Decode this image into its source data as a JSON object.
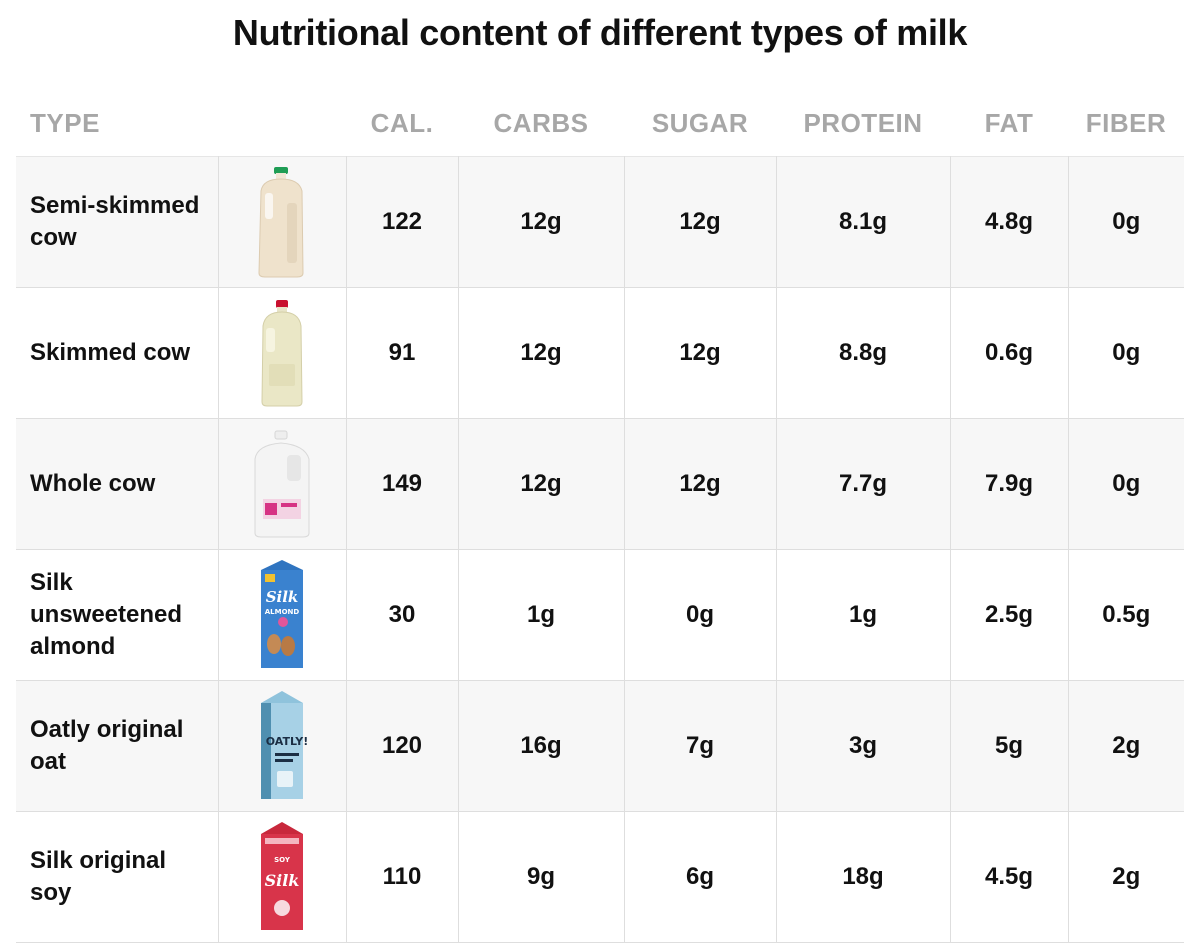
{
  "title": "Nutritional content of different types of milk",
  "headers": {
    "type": "TYPE",
    "cal": "CAL.",
    "carbs": "CARBS",
    "sugar": "SUGAR",
    "protein": "PROTEIN",
    "fat": "FAT",
    "fiber": "FIBER"
  },
  "rows": [
    {
      "type": "Semi-skimmed cow",
      "icon": "semi-skimmed-milk-jug-icon",
      "cal": "122",
      "carbs": "12g",
      "sugar": "12g",
      "protein": "8.1g",
      "fat": "4.8g",
      "fiber": "0g"
    },
    {
      "type": "Skimmed cow",
      "icon": "skimmed-milk-jug-icon",
      "cal": "91",
      "carbs": "12g",
      "sugar": "12g",
      "protein": "8.8g",
      "fat": "0.6g",
      "fiber": "0g"
    },
    {
      "type": "Whole cow",
      "icon": "whole-milk-gallon-icon",
      "cal": "149",
      "carbs": "12g",
      "sugar": "12g",
      "protein": "7.7g",
      "fat": "7.9g",
      "fiber": "0g"
    },
    {
      "type": "Silk unsweetened almond",
      "icon": "silk-almond-carton-icon",
      "cal": "30",
      "carbs": "1g",
      "sugar": "0g",
      "protein": "1g",
      "fat": "2.5g",
      "fiber": "0.5g"
    },
    {
      "type": "Oatly original oat",
      "icon": "oatly-carton-icon",
      "cal": "120",
      "carbs": "16g",
      "sugar": "7g",
      "protein": "3g",
      "fat": "5g",
      "fiber": "2g"
    },
    {
      "type": "Silk original soy",
      "icon": "silk-soy-carton-icon",
      "cal": "110",
      "carbs": "9g",
      "sugar": "6g",
      "protein": "18g",
      "fat": "4.5g",
      "fiber": "2g"
    }
  ],
  "chart_data": {
    "type": "table",
    "title": "Nutritional content of different types of milk",
    "columns": [
      "TYPE",
      "CAL.",
      "CARBS",
      "SUGAR",
      "PROTEIN",
      "FAT",
      "FIBER"
    ],
    "rows": [
      [
        "Semi-skimmed cow",
        "122",
        "12g",
        "12g",
        "8.1g",
        "4.8g",
        "0g"
      ],
      [
        "Skimmed cow",
        "91",
        "12g",
        "12g",
        "8.8g",
        "0.6g",
        "0g"
      ],
      [
        "Whole cow",
        "149",
        "12g",
        "12g",
        "7.7g",
        "7.9g",
        "0g"
      ],
      [
        "Silk unsweetened almond",
        "30",
        "1g",
        "0g",
        "1g",
        "2.5g",
        "0.5g"
      ],
      [
        "Oatly original oat",
        "120",
        "16g",
        "7g",
        "3g",
        "5g",
        "2g"
      ],
      [
        "Silk original soy",
        "110",
        "9g",
        "6g",
        "18g",
        "4.5g",
        "2g"
      ]
    ]
  },
  "product_labels": {
    "almond_brand": "Silk",
    "almond_variety": "ALMOND",
    "oat_brand": "OATLY!",
    "soy_brand": "Silk",
    "soy_variety": "SOY"
  }
}
